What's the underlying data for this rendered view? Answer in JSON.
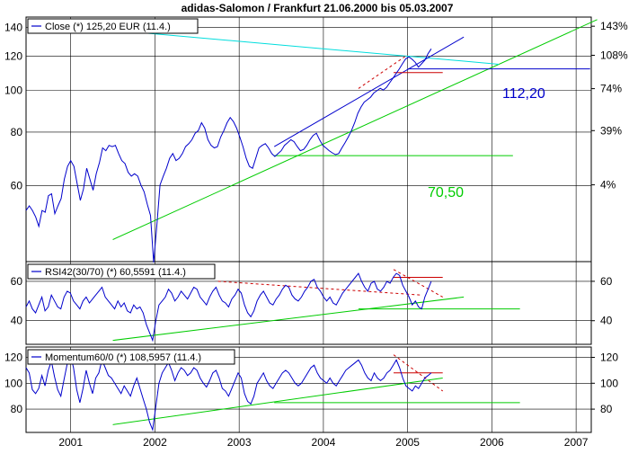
{
  "chart_data": {
    "title": "adidas-Salomon / Frankfurt 21.06.2000 bis 05.03.2007",
    "x_labels": [
      "2001",
      "2002",
      "2003",
      "2004",
      "2005",
      "2006",
      "2007"
    ],
    "panels": [
      {
        "id": "price",
        "type": "line",
        "legend": "Close (*) 125,20 EUR (11.4.)",
        "y_ticks_left": [
          "60",
          "80",
          "100",
          "120",
          "140"
        ],
        "y_ticks_right": [
          "4%",
          "39%",
          "74%",
          "108%",
          "143%"
        ],
        "annotations": [
          "112,20",
          "70,50"
        ],
        "series": [
          {
            "color": "#0000cc",
            "values": [
              52.6,
              53.9,
              52.6,
              50.8,
              48.3,
              52.6,
              52.1,
              56.9,
              57.5,
              51.7,
              53.9,
              56.1,
              62.2,
              66.6,
              68.7,
              66.6,
              60.8,
              55.5,
              59.0,
              65.9,
              62.2,
              58.6,
              64.0,
              68.0,
              73.5,
              72.4,
              74.5,
              74.0,
              74.5,
              71.3,
              68.7,
              67.6,
              64.5,
              63.2,
              64.0,
              63.2,
              60.3,
              58.1,
              54.4,
              51.2,
              39.8,
              48.7,
              60.3,
              63.2,
              65.9,
              69.5,
              71.3,
              68.7,
              69.5,
              71.3,
              74.0,
              75.2,
              76.8,
              79.5,
              80.6,
              84.1,
              81.7,
              76.8,
              74.5,
              73.5,
              74.0,
              77.9,
              80.6,
              84.1,
              86.5,
              84.6,
              81.7,
              77.9,
              74.0,
              69.5,
              66.6,
              65.9,
              69.5,
              73.5,
              74.5,
              75.2,
              73.5,
              71.3,
              70.2,
              71.3,
              72.4,
              74.5,
              75.6,
              76.8,
              76.0,
              74.0,
              72.4,
              72.9,
              74.5,
              76.8,
              78.6,
              79.5,
              76.8,
              74.5,
              73.5,
              72.4,
              71.6,
              70.9,
              71.3,
              73.5,
              75.6,
              77.9,
              80.6,
              84.1,
              88.4,
              91.5,
              93.9,
              95.1,
              96.4,
              98.6,
              99.8,
              101.1,
              100.2,
              101.6,
              104.2,
              106.7,
              109.4,
              112.2,
              115.3,
              118.4,
              119.6,
              118.1,
              116.2,
              113.2,
              115.3,
              117.5,
              121.6,
              124.9
            ]
          }
        ],
        "trendlines": [
          {
            "color": "#00cc00",
            "from": [
              "2001-07",
              45
            ],
            "to": [
              "2007-04",
              146
            ]
          },
          {
            "color": "#00dddd",
            "from": [
              "2001-08",
              137.5
            ],
            "to": [
              "2006-02",
              115
            ]
          },
          {
            "color": "#0000cc",
            "from": [
              "2003-06",
              74
            ],
            "to": [
              "2005-09",
              133
            ]
          },
          {
            "color": "#0000cc",
            "from": [
              "2005-01",
              112.2
            ],
            "to": [
              "2007-03",
              112.2
            ]
          },
          {
            "color": "#00cc00",
            "from": [
              "2003-06",
              70.5
            ],
            "to": [
              "2006-04",
              70.5
            ]
          },
          {
            "color": "#cc0000",
            "from": [
              "2004-11",
              110
            ],
            "to": [
              "2005-06",
              110
            ]
          },
          {
            "color": "#cc0000",
            "from": [
              "2004-06",
              101
            ],
            "to": [
              "2005-01",
              121
            ],
            "dashed": true
          }
        ]
      },
      {
        "id": "rsi",
        "type": "line",
        "legend": "RSI42(30/70) (*) 60,5591 (11.4.)",
        "y_ticks_left": [
          "40",
          "60"
        ],
        "y_ticks_right": [
          "40",
          "60"
        ],
        "series": [
          {
            "color": "#0000cc",
            "values": [
              47,
              50,
              46,
              44,
              48,
              52,
              45,
              47,
              53,
              50,
              47,
              46,
              52,
              55,
              54,
              50,
              48,
              46,
              50,
              52,
              49,
              51,
              53,
              55,
              57,
              52,
              50,
              48,
              46,
              50,
              47,
              49,
              45,
              44,
              48,
              46,
              47,
              44,
              38,
              34,
              30,
              40,
              48,
              50,
              52,
              56,
              54,
              50,
              52,
              55,
              53,
              51,
              54,
              57,
              56,
              52,
              50,
              48,
              52,
              55,
              57,
              53,
              50,
              49,
              47,
              51,
              53,
              56,
              54,
              48,
              44,
              42,
              45,
              50,
              53,
              55,
              52,
              49,
              48,
              51,
              53,
              56,
              58,
              57,
              53,
              51,
              50,
              52,
              55,
              57,
              60,
              61,
              57,
              55,
              52,
              50,
              52,
              49,
              48,
              51,
              54,
              56,
              58,
              60,
              62,
              64,
              60,
              57,
              55,
              59,
              60,
              56,
              55,
              57,
              60,
              59,
              62,
              64,
              63,
              58,
              55,
              52,
              48,
              50,
              47,
              46,
              52,
              56,
              60
            ]
          }
        ],
        "trendlines": [
          {
            "color": "#00cc00",
            "from": [
              "2001-07",
              30
            ],
            "to": [
              "2005-09",
              52
            ]
          },
          {
            "color": "#00cc00",
            "from": [
              "2004-06",
              46
            ],
            "to": [
              "2006-05",
              46
            ]
          },
          {
            "color": "#cc0000",
            "from": [
              "2002-10",
              60
            ],
            "to": [
              "2005-03",
              53
            ],
            "dashed": true
          },
          {
            "color": "#cc0000",
            "from": [
              "2004-11",
              66
            ],
            "to": [
              "2005-06",
              52
            ],
            "dashed": true
          },
          {
            "color": "#cc0000",
            "from": [
              "2004-11",
              62
            ],
            "to": [
              "2005-06",
              62
            ]
          }
        ]
      },
      {
        "id": "momentum",
        "type": "line",
        "legend": "Momentum60/0 (*) 108,5957 (11.4.)",
        "y_ticks_left": [
          "80",
          "100",
          "120"
        ],
        "y_ticks_right": [
          "80",
          "100",
          "120"
        ],
        "series": [
          {
            "color": "#0000cc",
            "values": [
              112,
              108,
              95,
              92,
              96,
              106,
              98,
              110,
              117,
              105,
              95,
              90,
              103,
              115,
              122,
              112,
              95,
              85,
              96,
              110,
              100,
              92,
              104,
              108,
              118,
              112,
              106,
              104,
              100,
              96,
              92,
              98,
              94,
              90,
              98,
              104,
              96,
              88,
              80,
              70,
              64,
              82,
              100,
              108,
              112,
              116,
              110,
              102,
              108,
              112,
              110,
              106,
              108,
              112,
              110,
              104,
              100,
              97,
              102,
              108,
              110,
              104,
              96,
              94,
              90,
              96,
              102,
              108,
              104,
              92,
              86,
              84,
              90,
              100,
              104,
              108,
              102,
              98,
              96,
              100,
              104,
              108,
              110,
              108,
              104,
              100,
              98,
              100,
              104,
              108,
              112,
              114,
              108,
              104,
              102,
              100,
              104,
              100,
              98,
              102,
              106,
              110,
              112,
              114,
              116,
              118,
              114,
              108,
              104,
              102,
              108,
              104,
              102,
              104,
              108,
              110,
              114,
              118,
              112,
              104,
              98,
              96,
              94,
              98,
              96,
              100,
              104,
              106,
              108
            ]
          }
        ],
        "trendlines": [
          {
            "color": "#00cc00",
            "from": [
              "2001-07",
              68
            ],
            "to": [
              "2005-06",
              104
            ]
          },
          {
            "color": "#00cc00",
            "from": [
              "2003-06",
              85
            ],
            "to": [
              "2006-05",
              85
            ]
          },
          {
            "color": "#cc0000",
            "from": [
              "2004-11",
              122
            ],
            "to": [
              "2005-06",
              94
            ],
            "dashed": true
          },
          {
            "color": "#cc0000",
            "from": [
              "2004-11",
              108
            ],
            "to": [
              "2005-06",
              108
            ]
          }
        ]
      }
    ]
  }
}
